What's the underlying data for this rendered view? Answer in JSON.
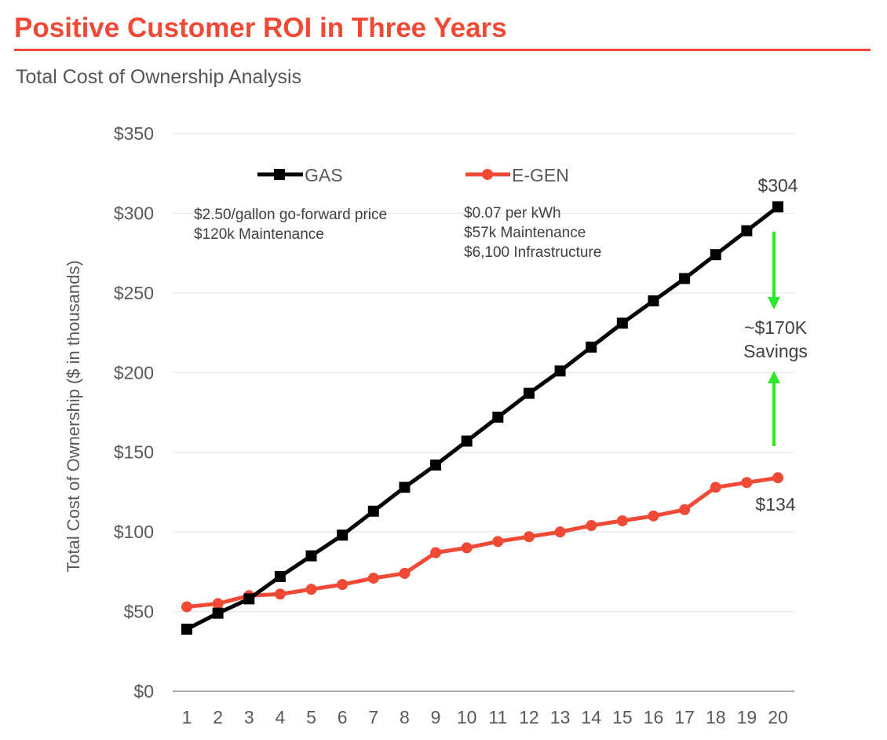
{
  "header": {
    "title": "Positive Customer ROI in Three Years",
    "subtitle": "Total Cost of Ownership Analysis"
  },
  "colors": {
    "title": "#f04a37",
    "gas": "#000000",
    "egen": "#f04a37",
    "savings_arrow": "#2ee82e",
    "grid": "#e6e6e6",
    "axis_text": "#595959"
  },
  "legend": {
    "gas_label": "GAS",
    "egen_label": "E-GEN",
    "gas_marker": "square-marker",
    "egen_marker": "circle-marker"
  },
  "notes": {
    "gas": [
      "$2.50/gallon go-forward price",
      "$120k Maintenance"
    ],
    "egen": [
      "$0.07 per kWh",
      "$57k Maintenance",
      "$6,100 Infrastructure"
    ]
  },
  "annotations": {
    "gas_end_label": "$304",
    "egen_end_label": "$134",
    "savings_line1": "~$170K",
    "savings_line2": "Savings"
  },
  "chart_data": {
    "type": "line",
    "title": "",
    "xlabel": "",
    "ylabel": "Total Cost of Ownership  ($ in thousands)",
    "x": [
      1,
      2,
      3,
      4,
      5,
      6,
      7,
      8,
      9,
      10,
      11,
      12,
      13,
      14,
      15,
      16,
      17,
      18,
      19,
      20
    ],
    "ylim": [
      0,
      350
    ],
    "yticks": [
      0,
      50,
      100,
      150,
      200,
      250,
      300,
      350
    ],
    "ytick_labels": [
      "$0",
      "$50",
      "$100",
      "$150",
      "$200",
      "$250",
      "$300",
      "$350"
    ],
    "grid": true,
    "legend_position": "top",
    "series": [
      {
        "name": "GAS",
        "values": [
          39,
          49,
          58,
          72,
          85,
          98,
          113,
          128,
          142,
          157,
          172,
          187,
          201,
          216,
          231,
          245,
          259,
          274,
          289,
          304
        ]
      },
      {
        "name": "E-GEN",
        "values": [
          53,
          55,
          60,
          61,
          64,
          67,
          71,
          74,
          87,
          90,
          94,
          97,
          100,
          104,
          107,
          110,
          114,
          128,
          131,
          134
        ]
      }
    ]
  }
}
